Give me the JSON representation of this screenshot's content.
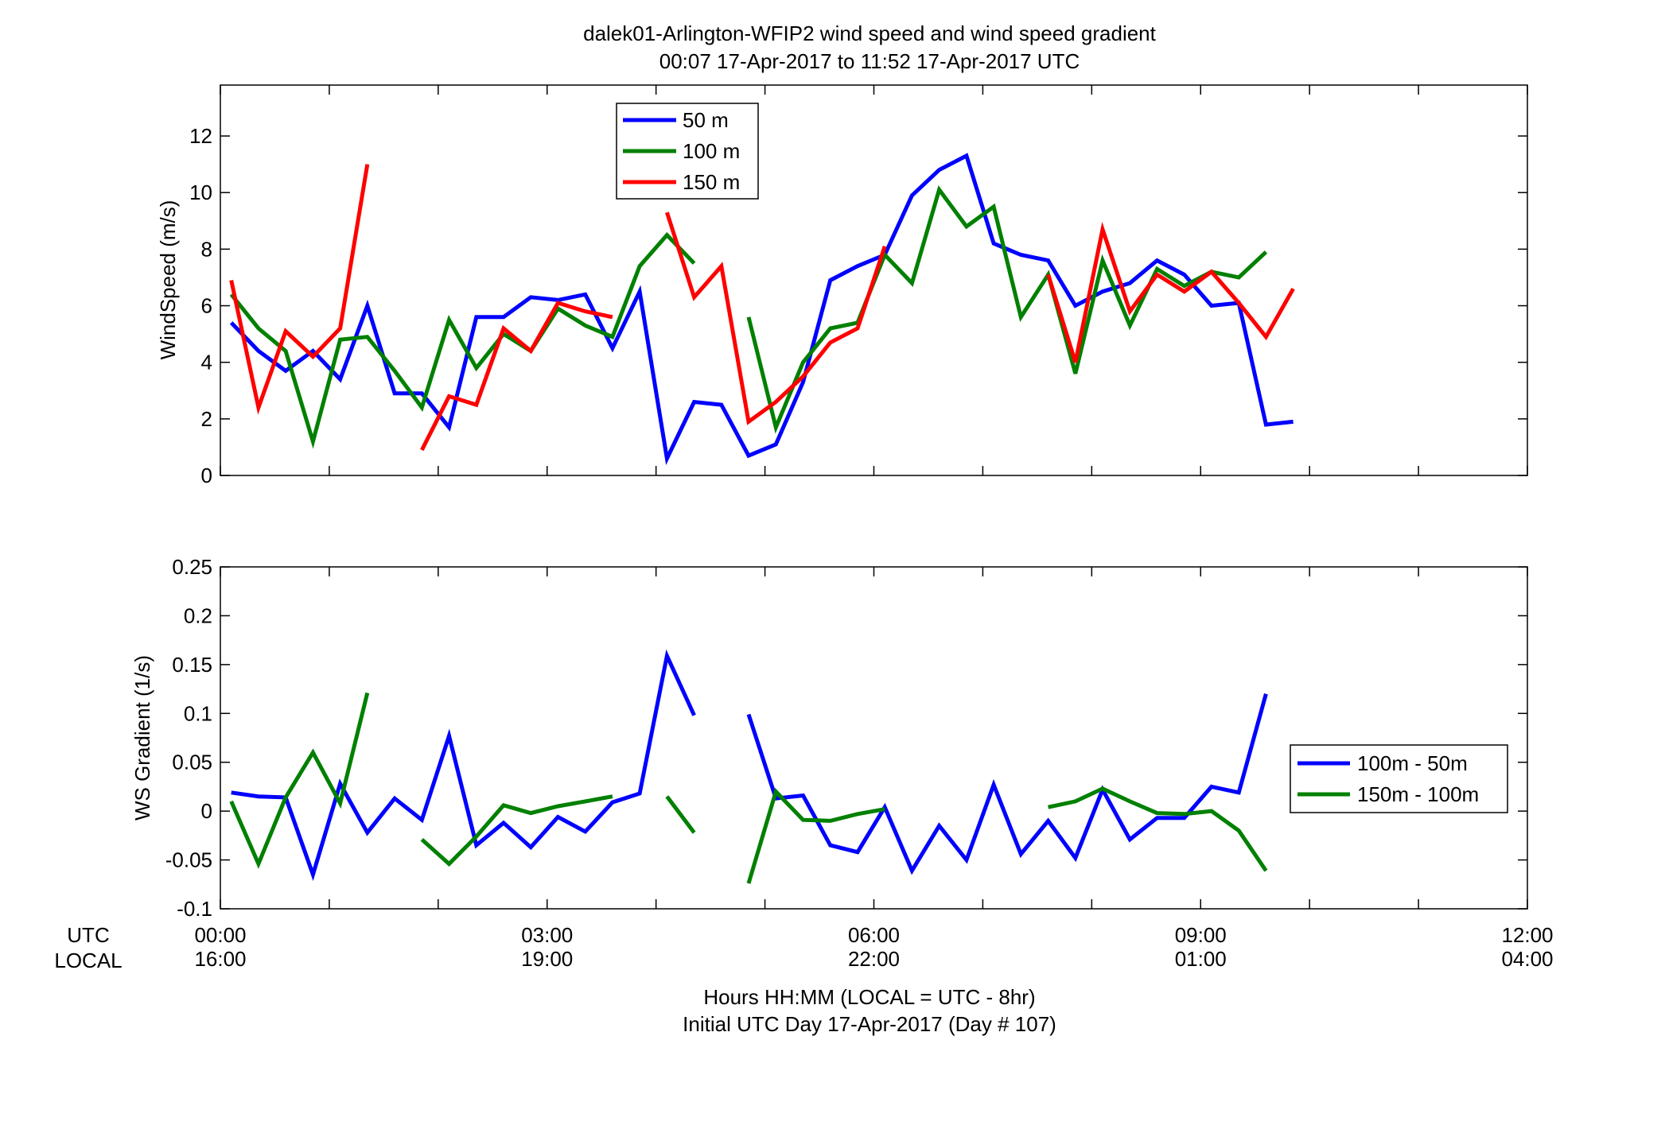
{
  "figure": {
    "title_line1": "dalek01-Arlington-WFIP2  wind speed and wind speed gradient",
    "title_line2": "00:07 17-Apr-2017 to 11:52 17-Apr-2017  UTC",
    "xlabel_line1": "Hours HH:MM  (LOCAL = UTC - 8hr)",
    "xlabel_line2": "Initial UTC Day 17-Apr-2017 (Day # 107)",
    "row_label_utc": "UTC",
    "row_label_local": "LOCAL",
    "x_ticks_utc": [
      "00:00",
      "03:00",
      "06:00",
      "09:00",
      "12:00"
    ],
    "x_ticks_local": [
      "16:00",
      "19:00",
      "22:00",
      "01:00",
      "04:00"
    ],
    "colors": {
      "blue": "#0000ff",
      "green": "#008000",
      "red": "#ff0000"
    }
  },
  "chart_data": [
    {
      "type": "line",
      "title": "",
      "xlabel": "",
      "ylabel": "WindSpeed (m/s)",
      "xlim": [
        0,
        12
      ],
      "ylim": [
        0,
        13.8
      ],
      "yticks": [
        0,
        2,
        4,
        6,
        8,
        10,
        12
      ],
      "ytick_labels": [
        "0",
        "2",
        "4",
        "6",
        "8",
        "10",
        "12"
      ],
      "legend_position": "top-center",
      "series": [
        {
          "name": "50 m",
          "color": "#0000ff",
          "segments": [
            [
              [
                0.1,
                5.4
              ],
              [
                0.35,
                4.4
              ],
              [
                0.6,
                3.7
              ],
              [
                0.85,
                4.4
              ],
              [
                1.1,
                3.4
              ],
              [
                1.35,
                6.0
              ],
              [
                1.6,
                2.9
              ],
              [
                1.85,
                2.9
              ],
              [
                2.1,
                1.7
              ],
              [
                2.35,
                5.6
              ],
              [
                2.6,
                5.6
              ],
              [
                2.85,
                6.3
              ],
              [
                3.1,
                6.2
              ],
              [
                3.35,
                6.4
              ],
              [
                3.6,
                4.5
              ],
              [
                3.85,
                6.5
              ],
              [
                4.1,
                0.6
              ],
              [
                4.35,
                2.6
              ],
              [
                4.6,
                2.5
              ],
              [
                4.85,
                0.7
              ],
              [
                5.1,
                1.1
              ],
              [
                5.35,
                3.3
              ],
              [
                5.6,
                6.9
              ],
              [
                5.85,
                7.4
              ],
              [
                6.1,
                7.8
              ],
              [
                6.35,
                9.9
              ],
              [
                6.6,
                10.8
              ],
              [
                6.85,
                11.3
              ],
              [
                7.1,
                8.2
              ],
              [
                7.35,
                7.8
              ],
              [
                7.6,
                7.6
              ],
              [
                7.85,
                6.0
              ],
              [
                8.1,
                6.5
              ],
              [
                8.35,
                6.8
              ],
              [
                8.6,
                7.6
              ],
              [
                8.85,
                7.1
              ],
              [
                9.1,
                6.0
              ],
              [
                9.35,
                6.1
              ],
              [
                9.6,
                1.8
              ],
              [
                9.85,
                1.9
              ]
            ]
          ]
        },
        {
          "name": "100 m",
          "color": "#008000",
          "segments": [
            [
              [
                0.1,
                6.4
              ],
              [
                0.35,
                5.2
              ],
              [
                0.6,
                4.4
              ],
              [
                0.85,
                1.2
              ],
              [
                1.1,
                4.8
              ],
              [
                1.35,
                4.9
              ],
              [
                1.6,
                3.7
              ],
              [
                1.85,
                2.4
              ],
              [
                2.1,
                5.5
              ],
              [
                2.35,
                3.8
              ],
              [
                2.6,
                5.0
              ],
              [
                2.85,
                4.4
              ],
              [
                3.1,
                5.9
              ],
              [
                3.35,
                5.3
              ],
              [
                3.6,
                4.9
              ],
              [
                3.85,
                7.4
              ],
              [
                4.1,
                8.5
              ],
              [
                4.35,
                7.5
              ]
            ],
            [
              [
                4.85,
                5.6
              ],
              [
                5.1,
                1.7
              ],
              [
                5.35,
                4.0
              ],
              [
                5.6,
                5.2
              ],
              [
                5.85,
                5.4
              ],
              [
                6.1,
                7.8
              ],
              [
                6.35,
                6.8
              ],
              [
                6.6,
                10.1
              ],
              [
                6.85,
                8.8
              ],
              [
                7.1,
                9.5
              ],
              [
                7.35,
                5.6
              ],
              [
                7.6,
                7.1
              ],
              [
                7.85,
                3.6
              ],
              [
                8.1,
                7.6
              ],
              [
                8.35,
                5.3
              ],
              [
                8.6,
                7.3
              ],
              [
                8.85,
                6.7
              ],
              [
                9.1,
                7.2
              ],
              [
                9.35,
                7.0
              ],
              [
                9.6,
                7.9
              ]
            ]
          ]
        },
        {
          "name": "150 m",
          "color": "#ff0000",
          "segments": [
            [
              [
                0.1,
                6.9
              ],
              [
                0.35,
                2.4
              ],
              [
                0.6,
                5.1
              ],
              [
                0.85,
                4.2
              ],
              [
                1.1,
                5.2
              ],
              [
                1.35,
                11.0
              ]
            ],
            [
              [
                1.85,
                0.9
              ],
              [
                2.1,
                2.8
              ],
              [
                2.35,
                2.5
              ],
              [
                2.6,
                5.2
              ],
              [
                2.85,
                4.4
              ],
              [
                3.1,
                6.1
              ],
              [
                3.35,
                5.8
              ],
              [
                3.6,
                5.6
              ]
            ],
            [
              [
                4.1,
                9.3
              ],
              [
                4.35,
                6.3
              ],
              [
                4.6,
                7.4
              ],
              [
                4.85,
                1.9
              ],
              [
                5.1,
                2.6
              ],
              [
                5.35,
                3.5
              ],
              [
                5.6,
                4.7
              ],
              [
                5.85,
                5.2
              ],
              [
                6.1,
                8.1
              ]
            ],
            [
              [
                7.6,
                7.1
              ],
              [
                7.85,
                4.0
              ],
              [
                8.1,
                8.7
              ],
              [
                8.35,
                5.8
              ],
              [
                8.6,
                7.1
              ],
              [
                8.85,
                6.5
              ],
              [
                9.1,
                7.2
              ],
              [
                9.35,
                6.1
              ],
              [
                9.6,
                4.9
              ],
              [
                9.85,
                6.6
              ]
            ]
          ]
        }
      ]
    },
    {
      "type": "line",
      "title": "",
      "xlabel": "",
      "ylabel": "WS Gradient (1/s)",
      "xlim": [
        0,
        12
      ],
      "ylim": [
        -0.1,
        0.25
      ],
      "yticks": [
        -0.1,
        -0.05,
        0,
        0.05,
        0.1,
        0.15,
        0.2,
        0.25
      ],
      "ytick_labels": [
        "-0.1",
        "-0.05",
        "0",
        "0.05",
        "0.1",
        "0.15",
        "0.2",
        "0.25"
      ],
      "legend_position": "right",
      "series": [
        {
          "name": "100m - 50m",
          "color": "#0000ff",
          "segments": [
            [
              [
                0.1,
                0.019
              ],
              [
                0.35,
                0.015
              ],
              [
                0.6,
                0.014
              ],
              [
                0.85,
                -0.065
              ],
              [
                1.1,
                0.028
              ],
              [
                1.35,
                -0.022
              ],
              [
                1.6,
                0.013
              ],
              [
                1.85,
                -0.009
              ],
              [
                2.1,
                0.077
              ],
              [
                2.35,
                -0.035
              ],
              [
                2.6,
                -0.012
              ],
              [
                2.85,
                -0.037
              ],
              [
                3.1,
                -0.006
              ],
              [
                3.35,
                -0.021
              ],
              [
                3.6,
                0.009
              ],
              [
                3.85,
                0.018
              ],
              [
                4.1,
                0.159
              ],
              [
                4.35,
                0.098
              ]
            ],
            [
              [
                4.85,
                0.099
              ],
              [
                5.1,
                0.013
              ],
              [
                5.35,
                0.016
              ],
              [
                5.6,
                -0.035
              ],
              [
                5.85,
                -0.042
              ],
              [
                6.1,
                0.004
              ],
              [
                6.35,
                -0.061
              ],
              [
                6.6,
                -0.015
              ],
              [
                6.85,
                -0.05
              ],
              [
                7.1,
                0.027
              ],
              [
                7.35,
                -0.044
              ],
              [
                7.6,
                -0.01
              ],
              [
                7.85,
                -0.048
              ],
              [
                8.1,
                0.022
              ],
              [
                8.35,
                -0.029
              ],
              [
                8.6,
                -0.007
              ],
              [
                8.85,
                -0.007
              ],
              [
                9.1,
                0.025
              ],
              [
                9.35,
                0.019
              ],
              [
                9.6,
                0.12
              ]
            ]
          ]
        },
        {
          "name": "150m - 100m",
          "color": "#008000",
          "segments": [
            [
              [
                0.1,
                0.01
              ],
              [
                0.35,
                -0.054
              ],
              [
                0.6,
                0.014
              ],
              [
                0.85,
                0.06
              ],
              [
                1.1,
                0.008
              ],
              [
                1.35,
                0.121
              ]
            ],
            [
              [
                1.85,
                -0.029
              ],
              [
                2.1,
                -0.054
              ],
              [
                2.35,
                -0.026
              ],
              [
                2.6,
                0.006
              ],
              [
                2.85,
                -0.002
              ],
              [
                3.1,
                0.005
              ],
              [
                3.35,
                0.01
              ],
              [
                3.6,
                0.015
              ]
            ],
            [
              [
                4.1,
                0.015
              ],
              [
                4.35,
                -0.022
              ]
            ],
            [
              [
                4.85,
                -0.074
              ],
              [
                5.1,
                0.02
              ],
              [
                5.35,
                -0.009
              ],
              [
                5.6,
                -0.01
              ],
              [
                5.85,
                -0.003
              ],
              [
                6.1,
                0.002
              ]
            ],
            [
              [
                7.6,
                0.004
              ],
              [
                7.85,
                0.01
              ],
              [
                8.1,
                0.023
              ],
              [
                8.35,
                0.01
              ],
              [
                8.6,
                -0.002
              ],
              [
                8.85,
                -0.003
              ],
              [
                9.1,
                0.0
              ],
              [
                9.35,
                -0.02
              ],
              [
                9.6,
                -0.061
              ]
            ]
          ]
        }
      ]
    }
  ]
}
